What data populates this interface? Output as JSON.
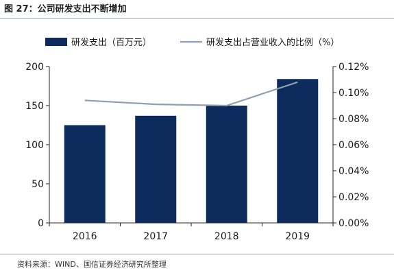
{
  "header": {
    "title": "图 27：公司研发支出不断增加"
  },
  "footer": {
    "source": "资料来源：WIND、国信证券经济研究所整理"
  },
  "colors": {
    "bar": "#0d2a5c",
    "line": "#8f9eb1",
    "axis": "#222222",
    "rule": "#9aa3b5"
  },
  "chart_data": {
    "type": "bar",
    "categories": [
      "2016",
      "2017",
      "2018",
      "2019"
    ],
    "series": [
      {
        "name": "研发支出（百万元）",
        "type": "bar",
        "axis": "left",
        "values": [
          125,
          137,
          150,
          184
        ]
      },
      {
        "name": "研发支出占营业收入的比例（%）",
        "type": "line",
        "axis": "right",
        "values": [
          0.094,
          0.091,
          0.09,
          0.108
        ]
      }
    ],
    "y_left": {
      "min": 0,
      "max": 200,
      "ticks": [
        "0",
        "50",
        "100",
        "150",
        "200"
      ]
    },
    "y_right": {
      "min": 0,
      "max": 0.12,
      "ticks": [
        "0.00%",
        "0.02%",
        "0.04%",
        "0.06%",
        "0.08%",
        "0.10%",
        "0.12%"
      ]
    },
    "legend_position": "top",
    "grid": false
  }
}
